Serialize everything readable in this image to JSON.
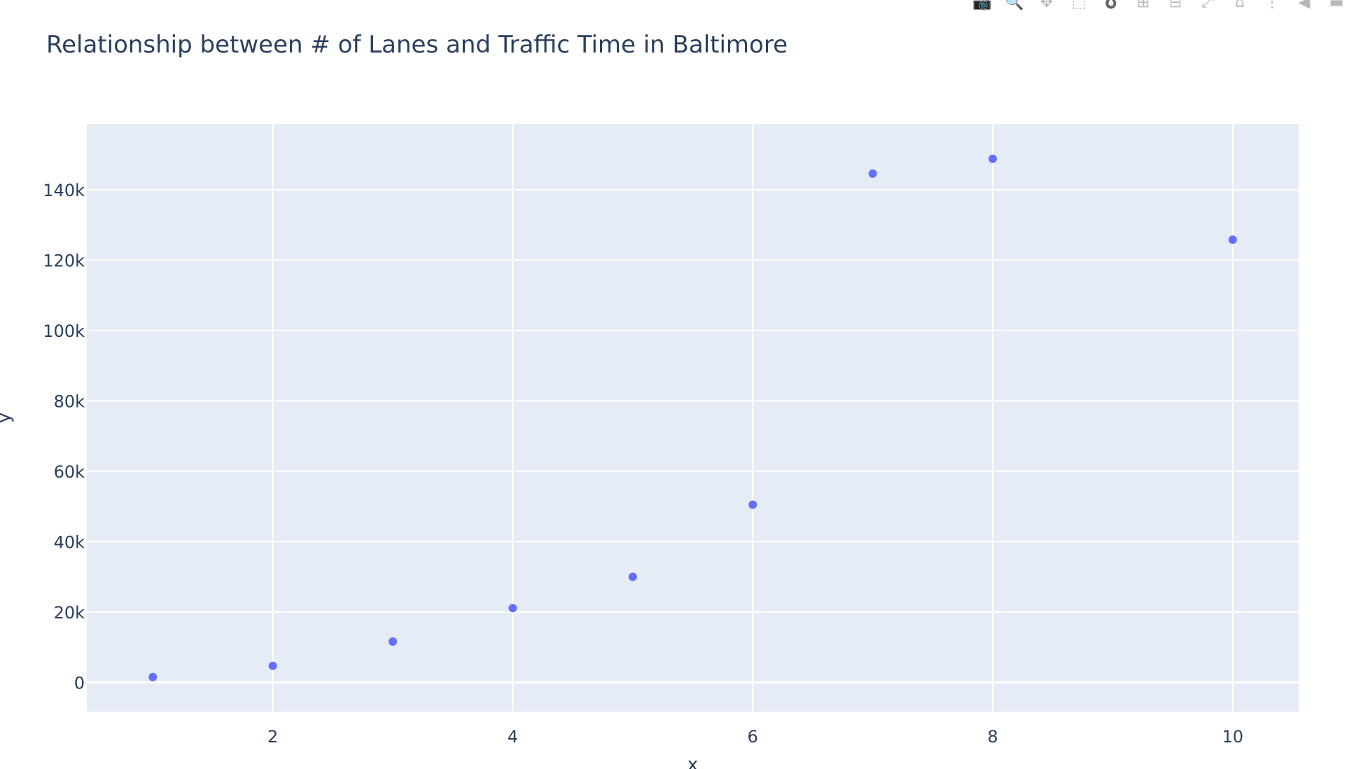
{
  "chart_data": {
    "type": "scatter",
    "title": "Relationship between # of Lanes and Traffic Time in Baltimore",
    "xlabel": "x",
    "ylabel": "y",
    "x": [
      1,
      2,
      3,
      4,
      5,
      6,
      7,
      8,
      10
    ],
    "y": [
      1500,
      4700,
      11600,
      21100,
      30000,
      50500,
      144600,
      148800,
      125800
    ],
    "xlim": [
      0.45,
      10.55
    ],
    "ylim": [
      -8300,
      158700
    ],
    "x_ticks": [
      2,
      4,
      6,
      8,
      10
    ],
    "x_tick_labels": [
      "2",
      "4",
      "6",
      "8",
      "10"
    ],
    "y_ticks": [
      0,
      20000,
      40000,
      60000,
      80000,
      100000,
      120000,
      140000
    ],
    "y_tick_labels": [
      "0",
      "20k",
      "40k",
      "60k",
      "80k",
      "100k",
      "120k",
      "140k"
    ],
    "grid": true,
    "colors": {
      "marker": "#636efa",
      "plot_background": "#e5ecf6",
      "grid": "#ffffff",
      "text": "#2a3f5f"
    }
  },
  "modebar": {
    "buttons": [
      {
        "icon": "camera-icon",
        "glyph": "📷",
        "active": false
      },
      {
        "icon": "zoom-icon",
        "glyph": "🔍",
        "active": true
      },
      {
        "icon": "pan-icon",
        "glyph": "✥",
        "active": false
      },
      {
        "icon": "box-select-icon",
        "glyph": "⬚",
        "active": false
      },
      {
        "icon": "lasso-select-icon",
        "glyph": "➰",
        "active": false
      },
      {
        "icon": "zoom-in-icon",
        "glyph": "⊞",
        "active": false
      },
      {
        "icon": "zoom-out-icon",
        "glyph": "⊟",
        "active": false
      },
      {
        "icon": "autoscale-icon",
        "glyph": "⤢",
        "active": false
      },
      {
        "icon": "reset-axes-icon",
        "glyph": "⌂",
        "active": false
      },
      {
        "icon": "spikelines-icon",
        "glyph": "⋮",
        "active": false
      },
      {
        "icon": "hover-closest-icon",
        "glyph": "◀",
        "active": false
      },
      {
        "icon": "hover-compare-icon",
        "glyph": "▬",
        "active": false
      }
    ]
  }
}
